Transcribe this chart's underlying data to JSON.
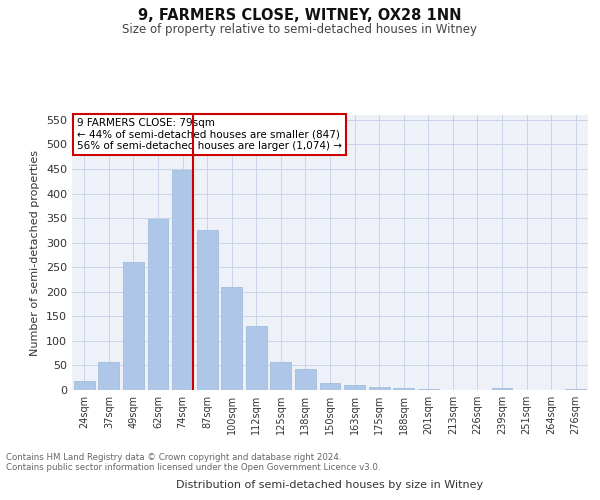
{
  "title": "9, FARMERS CLOSE, WITNEY, OX28 1NN",
  "subtitle": "Size of property relative to semi-detached houses in Witney",
  "xlabel": "Distribution of semi-detached houses by size in Witney",
  "ylabel": "Number of semi-detached properties",
  "categories": [
    "24sqm",
    "37sqm",
    "49sqm",
    "62sqm",
    "74sqm",
    "87sqm",
    "100sqm",
    "112sqm",
    "125sqm",
    "138sqm",
    "150sqm",
    "163sqm",
    "175sqm",
    "188sqm",
    "201sqm",
    "213sqm",
    "226sqm",
    "239sqm",
    "251sqm",
    "264sqm",
    "276sqm"
  ],
  "values": [
    18,
    57,
    260,
    348,
    447,
    325,
    210,
    130,
    57,
    42,
    15,
    10,
    7,
    4,
    2,
    1,
    0,
    5,
    0,
    0,
    3
  ],
  "bar_color": "#aec6e8",
  "bar_edge_color": "#9ab8d8",
  "grid_color": "#c8d4e8",
  "bg_color": "#eef2f8",
  "vline_color": "#cc0000",
  "annotation_text": "9 FARMERS CLOSE: 79sqm\n← 44% of semi-detached houses are smaller (847)\n56% of semi-detached houses are larger (1,074) →",
  "annotation_box_color": "#ffffff",
  "annotation_box_edge": "#cc0000",
  "footer_line1": "Contains HM Land Registry data © Crown copyright and database right 2024.",
  "footer_line2": "Contains public sector information licensed under the Open Government Licence v3.0.",
  "ylim": [
    0,
    560
  ],
  "yticks": [
    0,
    50,
    100,
    150,
    200,
    250,
    300,
    350,
    400,
    450,
    500,
    550
  ]
}
